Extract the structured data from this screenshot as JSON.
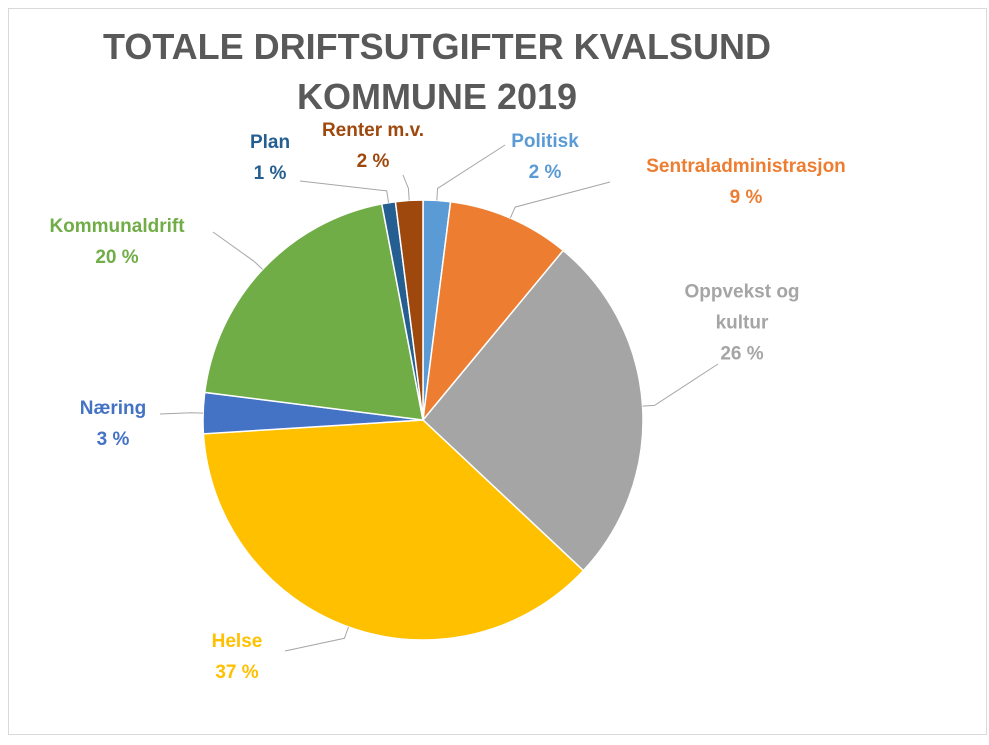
{
  "chart_data": {
    "type": "pie",
    "title": "TOTALE DRIFTSUTGIFTER KVALSUND KOMMUNE 2019",
    "categories": [
      "Politisk",
      "Sentraladministrasjon",
      "Oppvekst og kultur",
      "Helse",
      "Næring",
      "Kommunaldrift",
      "Plan",
      "Renter m.v."
    ],
    "values": [
      2,
      9,
      26,
      37,
      3,
      20,
      1,
      2
    ],
    "value_labels": [
      "2 %",
      "9 %",
      "26 %",
      "37 %",
      "3 %",
      "20 %",
      "1 %",
      "2 %"
    ],
    "colors": [
      "#5b9bd5",
      "#ed7d31",
      "#a5a5a5",
      "#ffc000",
      "#4472c4",
      "#70ad47",
      "#255e91",
      "#9e480e"
    ]
  }
}
